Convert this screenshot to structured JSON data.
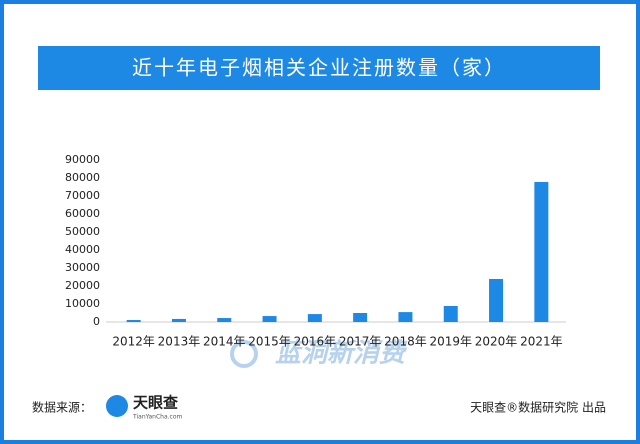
{
  "chart_data": {
    "type": "bar",
    "title": "近十年电子烟相关企业注册数量（家）",
    "categories": [
      "2012年",
      "2013年",
      "2014年",
      "2015年",
      "2016年",
      "2017年",
      "2018年",
      "2019年",
      "2020年",
      "2021年"
    ],
    "values": [
      1100,
      1700,
      2200,
      3300,
      4400,
      5000,
      5500,
      8900,
      23900,
      77800
    ],
    "color": "#1e88e5",
    "ylim": [
      0,
      90000
    ],
    "yticks": [
      0,
      10000,
      20000,
      30000,
      40000,
      50000,
      60000,
      70000,
      80000,
      90000
    ],
    "grid": false
  },
  "footer": {
    "source_label": "数据来源：",
    "logo": "天眼查",
    "logo_url": "TianYanCha.com",
    "credit": "天眼查®数据研究院 出品"
  },
  "watermark": "蓝洞新消费"
}
